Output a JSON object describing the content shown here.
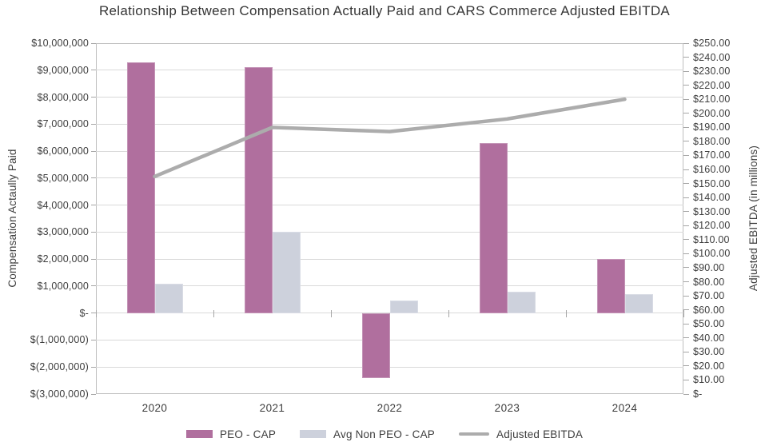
{
  "title": "Relationship Between Compensation Actually Paid and CARS Commerce Adjusted EBITDA",
  "chart_data": {
    "type": "combo_bar_line",
    "categories": [
      "2020",
      "2021",
      "2022",
      "2023",
      "2024"
    ],
    "bar_series": [
      {
        "name": "PEO - CAP",
        "axis": "left",
        "color": "#b06f9e",
        "border_color": "#c495b7",
        "values": [
          9300000,
          9100000,
          -2400000,
          6300000,
          2000000
        ]
      },
      {
        "name": "Avg Non PEO - CAP",
        "axis": "left",
        "color": "#cdd1dc",
        "border_color": "#d9dce5",
        "values": [
          1100000,
          3000000,
          450000,
          800000,
          700000
        ]
      }
    ],
    "line_series": [
      {
        "name": "Adjusted EBITDA",
        "axis": "right",
        "color": "#acacac",
        "values": [
          155,
          190,
          187,
          196,
          210
        ]
      }
    ],
    "left_axis": {
      "label": "Compensation Actaully Paid",
      "min": -3000000,
      "max": 10000000,
      "tick_interval": 1000000,
      "tick_labels": [
        "$10,000,000",
        "$9,000,000",
        "$8,000,000",
        "$7,000,000",
        "$6,000,000",
        "$5,000,000",
        "$4,000,000",
        "$3,000,000",
        "$2,000,000",
        "$1,000,000",
        "$-",
        "$(1,000,000)",
        "$(2,000,000)",
        "$(3,000,000)"
      ]
    },
    "right_axis": {
      "label": "Adjusted EBITDA (in millions)",
      "min": 0,
      "max": 250,
      "tick_interval": 10,
      "tick_labels": [
        "$250.00",
        "$240.00",
        "$230.00",
        "$220.00",
        "$210.00",
        "$200.00",
        "$190.00",
        "$180.00",
        "$170.00",
        "$160.00",
        "$150.00",
        "$140.00",
        "$130.00",
        "$120.00",
        "$110.00",
        "$100.00",
        "$90.00",
        "$80.00",
        "$70.00",
        "$60.00",
        "$50.00",
        "$40.00",
        "$30.00",
        "$20.00",
        "$10.00",
        "$-"
      ]
    },
    "legend_position": "bottom",
    "grid": true
  }
}
